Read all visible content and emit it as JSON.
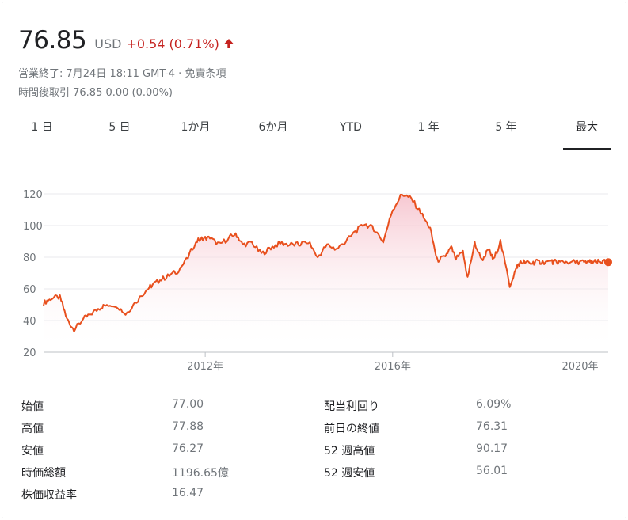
{
  "quote": {
    "price": "76.85",
    "currency": "USD",
    "change": "+0.54 (0.71%)",
    "change_color": "#c5221f",
    "arrow_icon": "arrow-up-icon"
  },
  "market_status": {
    "closed_text": "営業終了: 7月24日 18:11 GMT-4 · ",
    "disclaimer_link": "免責条項"
  },
  "after_hours": "時間後取引 76.85 0.00 (0.00%)",
  "tabs": [
    {
      "label": "1 日"
    },
    {
      "label": "5 日"
    },
    {
      "label": "1か月"
    },
    {
      "label": "6か月"
    },
    {
      "label": "YTD"
    },
    {
      "label": "1 年"
    },
    {
      "label": "5 年"
    },
    {
      "label": "最大",
      "active": true
    }
  ],
  "chart_data": {
    "type": "area",
    "line_color": "#e8501e",
    "fill_color": "#f6c5cf",
    "y_ticks": [
      "120",
      "100",
      "80",
      "60",
      "40",
      "20"
    ],
    "ylim": [
      20,
      120
    ],
    "x_ticks": [
      "2012年",
      "2016年",
      "2020年"
    ],
    "grid": true,
    "series": [
      {
        "x": [
          2008.55,
          2008.7,
          2008.9,
          2009.05,
          2009.2,
          2009.4,
          2009.55,
          2009.75,
          2009.9,
          2010.1,
          2010.3,
          2010.5,
          2010.7,
          2010.85,
          2011.0,
          2011.2,
          2011.4,
          2011.6,
          2011.8,
          2011.95,
          2012.1,
          2012.3,
          2012.5,
          2012.65,
          2012.8,
          2013.0,
          2013.2,
          2013.4,
          2013.6,
          2013.8,
          2014.0,
          2014.2,
          2014.4,
          2014.6,
          2014.8,
          2015.0,
          2015.2,
          2015.4,
          2015.6,
          2015.8,
          2016.0,
          2016.2,
          2016.4,
          2016.6,
          2016.8,
          2016.95,
          2017.1,
          2017.25,
          2017.35,
          2017.5,
          2017.6,
          2017.75,
          2017.9,
          2018.05,
          2018.15,
          2018.3,
          2018.5,
          2018.65,
          2018.7,
          2018.8,
          2018.95,
          2019.05,
          2019.2,
          2019.4,
          2019.5,
          2019.65,
          2019.8,
          2020.0,
          2020.1,
          2020.2,
          2020.25,
          2020.35,
          2020.45,
          2020.55,
          2020.6
        ],
        "y": [
          51,
          54,
          55,
          41,
          34,
          41,
          44,
          48,
          50,
          50,
          44,
          51,
          58,
          62,
          65,
          68,
          71,
          78,
          90,
          92,
          92,
          88,
          92,
          95,
          88,
          89,
          82,
          86,
          89,
          88,
          88,
          90,
          80,
          88,
          85,
          90,
          96,
          101,
          98,
          90,
          110,
          120,
          117,
          108,
          98,
          78,
          80,
          86,
          79,
          83,
          67,
          89,
          78,
          85,
          78,
          90,
          62,
          74,
          76,
          77,
          76,
          77,
          77,
          77,
          77,
          77,
          77,
          77,
          77,
          77,
          77,
          77,
          77,
          77,
          77
        ]
      }
    ],
    "last_value": 76.85
  },
  "stats": {
    "left": [
      {
        "label": "始値",
        "value": "77.00"
      },
      {
        "label": "高値",
        "value": "77.88"
      },
      {
        "label": "安値",
        "value": "76.27"
      },
      {
        "label": "時価総額",
        "value": "1196.65億"
      },
      {
        "label": "株価収益率",
        "value": "16.47"
      }
    ],
    "right": [
      {
        "label": "配当利回り",
        "value": "6.09%"
      },
      {
        "label": "前日の終値",
        "value": "76.31"
      },
      {
        "label": "52 週高値",
        "value": "90.17"
      },
      {
        "label": "52 週安値",
        "value": "56.01"
      }
    ]
  }
}
